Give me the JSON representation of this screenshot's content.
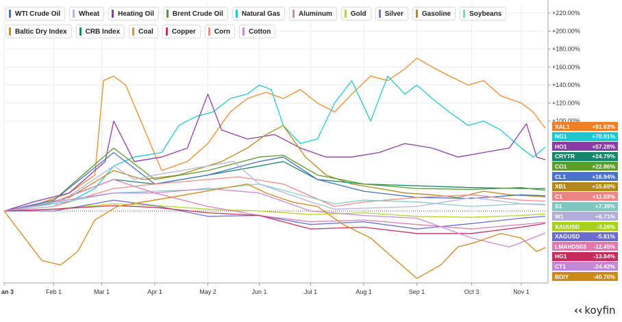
{
  "chart_data": {
    "type": "line",
    "ylabel_suffix": "%",
    "ylim": [
      -80,
      230
    ],
    "yticks": [
      100,
      120,
      140,
      160,
      180,
      200,
      220
    ],
    "ytick_labels": [
      "+100.00%",
      "+120.00%",
      "+140.00%",
      "+160.00%",
      "+180.00%",
      "+200.00%",
      "+220.00%"
    ],
    "x_range": [
      "2022-01-03",
      "2022-11-15"
    ],
    "xticks": [
      {
        "date": "2022-01-03",
        "label": "an 3"
      },
      {
        "date": "2022-02-01",
        "label": "Feb 1"
      },
      {
        "date": "2022-03-01",
        "label": "Mar 1"
      },
      {
        "date": "2022-04-01",
        "label": "Apr 1"
      },
      {
        "date": "2022-05-02",
        "label": "May 2"
      },
      {
        "date": "2022-06-01",
        "label": "Jun 1"
      },
      {
        "date": "2022-07-01",
        "label": "Jul 1"
      },
      {
        "date": "2022-08-01",
        "label": "Aug 1"
      },
      {
        "date": "2022-09-01",
        "label": "Sep 1"
      },
      {
        "date": "2022-10-03",
        "label": "Oct 3"
      },
      {
        "date": "2022-11-01",
        "label": "Nov 1"
      }
    ],
    "legend": [
      {
        "name": "WTI Crude Oil",
        "color": "#4472c4"
      },
      {
        "name": "Wheat",
        "color": "#b4b4dc"
      },
      {
        "name": "Heating Oil",
        "color": "#8e3ca8"
      },
      {
        "name": "Brent Crude Oil",
        "color": "#5a9a2a"
      },
      {
        "name": "Natural Gas",
        "color": "#22c8d0"
      },
      {
        "name": "Aluminum",
        "color": "#e27fb3"
      },
      {
        "name": "Gold",
        "color": "#b4d62a"
      },
      {
        "name": "Silver",
        "color": "#6f6fd6"
      },
      {
        "name": "Gasoline",
        "color": "#b8891a"
      },
      {
        "name": "Soybeans",
        "color": "#86cdc4"
      },
      {
        "name": "Baltic Dry Index",
        "color": "#d1891c"
      },
      {
        "name": "CRB Index",
        "color": "#16876e"
      },
      {
        "name": "Coal",
        "color": "#f08a28"
      },
      {
        "name": "Copper",
        "color": "#c7325e"
      },
      {
        "name": "Corn",
        "color": "#ef8a8a"
      },
      {
        "name": "Cotton",
        "color": "#c989d6"
      }
    ],
    "badges": [
      {
        "ticker": "XAL1",
        "value": "+91.63%",
        "color": "#f57f20"
      },
      {
        "ticker": "NG1",
        "value": "+70.91%",
        "color": "#1fc6cf"
      },
      {
        "ticker": "HO1",
        "value": "+57.28%",
        "color": "#8c3aa6"
      },
      {
        "ticker": "CRYTR",
        "value": "+24.79%",
        "color": "#13876d"
      },
      {
        "ticker": "CO1",
        "value": "+22.86%",
        "color": "#5e9c2b"
      },
      {
        "ticker": "CL1",
        "value": "+16.94%",
        "color": "#4a74c6"
      },
      {
        "ticker": "XB1",
        "value": "+15.69%",
        "color": "#b38815"
      },
      {
        "ticker": "C1",
        "value": "+11.03%",
        "color": "#ea8686"
      },
      {
        "ticker": "S1",
        "value": "+7.39%",
        "color": "#7cc8bf"
      },
      {
        "ticker": "W1",
        "value": "+6.71%",
        "color": "#aeaed8"
      },
      {
        "ticker": "XAUUSD",
        "value": "-3.26%",
        "color": "#a8d01e"
      },
      {
        "ticker": "XAGUSD",
        "value": "-5.81%",
        "color": "#6a6ad3"
      },
      {
        "ticker": "LMAHDS03",
        "value": "-12.45%",
        "color": "#e079b0"
      },
      {
        "ticker": "HG1",
        "value": "-13.84%",
        "color": "#c42d5b"
      },
      {
        "ticker": "CT1",
        "value": "-24.42%",
        "color": "#c488d2"
      },
      {
        "ticker": "BDIY",
        "value": "-40.70%",
        "color": "#c98a1a"
      }
    ],
    "series": [
      {
        "name": "Coal",
        "color": "#f08a28",
        "x": [
          "2022-01-03",
          "2022-01-20",
          "2022-02-10",
          "2022-02-25",
          "2022-03-02",
          "2022-03-08",
          "2022-03-15",
          "2022-03-25",
          "2022-04-05",
          "2022-04-20",
          "2022-05-02",
          "2022-05-15",
          "2022-05-25",
          "2022-06-05",
          "2022-06-15",
          "2022-06-25",
          "2022-07-05",
          "2022-07-15",
          "2022-07-25",
          "2022-08-05",
          "2022-08-15",
          "2022-08-25",
          "2022-09-01",
          "2022-09-10",
          "2022-09-20",
          "2022-10-01",
          "2022-10-10",
          "2022-10-20",
          "2022-11-01",
          "2022-11-08",
          "2022-11-15"
        ],
        "y": [
          0,
          6,
          20,
          40,
          145,
          150,
          140,
          95,
          45,
          55,
          75,
          110,
          125,
          132,
          125,
          135,
          120,
          110,
          130,
          150,
          145,
          158,
          170,
          160,
          150,
          140,
          145,
          128,
          120,
          110,
          92
        ]
      },
      {
        "name": "Natural Gas",
        "color": "#22c8d0",
        "x": [
          "2022-01-03",
          "2022-01-20",
          "2022-02-10",
          "2022-02-25",
          "2022-03-08",
          "2022-03-20",
          "2022-04-05",
          "2022-04-15",
          "2022-04-25",
          "2022-05-05",
          "2022-05-15",
          "2022-05-25",
          "2022-06-01",
          "2022-06-08",
          "2022-06-15",
          "2022-06-25",
          "2022-07-05",
          "2022-07-15",
          "2022-07-25",
          "2022-08-05",
          "2022-08-15",
          "2022-08-25",
          "2022-09-01",
          "2022-09-10",
          "2022-09-20",
          "2022-10-01",
          "2022-10-10",
          "2022-10-20",
          "2022-11-01",
          "2022-11-08",
          "2022-11-15"
        ],
        "y": [
          0,
          6,
          10,
          25,
          50,
          60,
          65,
          95,
          105,
          110,
          125,
          130,
          140,
          135,
          95,
          75,
          80,
          120,
          145,
          100,
          150,
          130,
          140,
          125,
          110,
          95,
          100,
          90,
          70,
          60,
          71
        ]
      },
      {
        "name": "Heating Oil",
        "color": "#8e3ca8",
        "x": [
          "2022-01-03",
          "2022-01-20",
          "2022-02-10",
          "2022-02-25",
          "2022-03-03",
          "2022-03-08",
          "2022-03-20",
          "2022-04-05",
          "2022-04-20",
          "2022-05-02",
          "2022-05-10",
          "2022-05-25",
          "2022-06-10",
          "2022-06-25",
          "2022-07-10",
          "2022-07-25",
          "2022-08-10",
          "2022-08-25",
          "2022-09-10",
          "2022-09-25",
          "2022-10-10",
          "2022-10-25",
          "2022-11-04",
          "2022-11-10",
          "2022-11-15"
        ],
        "y": [
          0,
          10,
          20,
          45,
          55,
          100,
          55,
          60,
          70,
          130,
          90,
          80,
          85,
          70,
          60,
          60,
          65,
          75,
          70,
          60,
          65,
          70,
          97,
          60,
          57
        ]
      },
      {
        "name": "Gasoline",
        "color": "#b8891a",
        "x": [
          "2022-01-03",
          "2022-01-20",
          "2022-02-10",
          "2022-03-08",
          "2022-03-25",
          "2022-04-15",
          "2022-05-10",
          "2022-05-25",
          "2022-06-05",
          "2022-06-15",
          "2022-06-28",
          "2022-07-10",
          "2022-07-25",
          "2022-08-10",
          "2022-08-25",
          "2022-09-10",
          "2022-09-25",
          "2022-10-10",
          "2022-10-25",
          "2022-11-15"
        ],
        "y": [
          0,
          5,
          15,
          45,
          35,
          40,
          55,
          70,
          85,
          95,
          60,
          40,
          30,
          25,
          20,
          18,
          15,
          22,
          18,
          15.7
        ]
      },
      {
        "name": "CRB Index",
        "color": "#16876e",
        "x": [
          "2022-01-03",
          "2022-02-01",
          "2022-03-08",
          "2022-04-01",
          "2022-05-02",
          "2022-06-01",
          "2022-06-15",
          "2022-07-05",
          "2022-08-01",
          "2022-09-01",
          "2022-10-03",
          "2022-11-01",
          "2022-11-15"
        ],
        "y": [
          0,
          10,
          35,
          30,
          40,
          50,
          55,
          35,
          30,
          28,
          26,
          25,
          24.8
        ]
      },
      {
        "name": "Brent Crude Oil",
        "color": "#5a9a2a",
        "x": [
          "2022-01-03",
          "2022-02-01",
          "2022-03-08",
          "2022-04-01",
          "2022-05-02",
          "2022-06-01",
          "2022-06-15",
          "2022-07-05",
          "2022-08-01",
          "2022-09-01",
          "2022-10-03",
          "2022-11-01",
          "2022-11-15"
        ],
        "y": [
          0,
          12,
          70,
          35,
          45,
          60,
          62,
          40,
          30,
          25,
          24,
          26,
          22.9
        ]
      },
      {
        "name": "WTI Crude Oil",
        "color": "#4472c4",
        "x": [
          "2022-01-03",
          "2022-02-01",
          "2022-03-08",
          "2022-04-01",
          "2022-05-02",
          "2022-06-01",
          "2022-06-15",
          "2022-07-05",
          "2022-08-01",
          "2022-09-01",
          "2022-10-03",
          "2022-11-01",
          "2022-11-15"
        ],
        "y": [
          0,
          12,
          65,
          30,
          40,
          55,
          60,
          35,
          22,
          15,
          14,
          18,
          16.9
        ]
      },
      {
        "name": "Corn",
        "color": "#ef8a8a",
        "x": [
          "2022-01-03",
          "2022-02-01",
          "2022-03-08",
          "2022-04-01",
          "2022-05-02",
          "2022-05-20",
          "2022-06-15",
          "2022-07-15",
          "2022-08-01",
          "2022-09-01",
          "2022-10-03",
          "2022-11-01",
          "2022-11-15"
        ],
        "y": [
          0,
          5,
          25,
          30,
          35,
          38,
          30,
          5,
          10,
          15,
          18,
          12,
          11
        ]
      },
      {
        "name": "Soybeans",
        "color": "#86cdc4",
        "x": [
          "2022-01-03",
          "2022-02-01",
          "2022-03-08",
          "2022-04-01",
          "2022-05-02",
          "2022-06-01",
          "2022-07-15",
          "2022-08-01",
          "2022-09-01",
          "2022-10-03",
          "2022-11-01",
          "2022-11-15"
        ],
        "y": [
          0,
          8,
          20,
          22,
          24,
          30,
          8,
          12,
          10,
          5,
          8,
          7.4
        ]
      },
      {
        "name": "Wheat",
        "color": "#b4b4dc",
        "x": [
          "2022-01-03",
          "2022-02-01",
          "2022-03-08",
          "2022-03-20",
          "2022-04-01",
          "2022-05-02",
          "2022-05-17",
          "2022-06-01",
          "2022-07-01",
          "2022-07-15",
          "2022-08-01",
          "2022-09-01",
          "2022-10-03",
          "2022-11-01",
          "2022-11-15"
        ],
        "y": [
          0,
          5,
          50,
          35,
          40,
          50,
          55,
          30,
          10,
          2,
          3,
          5,
          15,
          8,
          6.7
        ]
      },
      {
        "name": "Gold",
        "color": "#b4d62a",
        "x": [
          "2022-01-03",
          "2022-02-01",
          "2022-03-08",
          "2022-04-01",
          "2022-05-02",
          "2022-06-01",
          "2022-07-01",
          "2022-08-01",
          "2022-09-01",
          "2022-10-03",
          "2022-11-01",
          "2022-11-15"
        ],
        "y": [
          0,
          2,
          8,
          6,
          2,
          0,
          -4,
          -2,
          -6,
          -7,
          -5,
          -3.3
        ]
      },
      {
        "name": "Silver",
        "color": "#6f6fd6",
        "x": [
          "2022-01-03",
          "2022-02-01",
          "2022-03-08",
          "2022-04-01",
          "2022-05-02",
          "2022-06-01",
          "2022-07-01",
          "2022-08-01",
          "2022-09-01",
          "2022-10-03",
          "2022-11-01",
          "2022-11-15"
        ],
        "y": [
          0,
          0,
          12,
          6,
          -6,
          -5,
          -15,
          -12,
          -20,
          -14,
          -8,
          -5.8
        ]
      },
      {
        "name": "Aluminum",
        "color": "#e27fb3",
        "x": [
          "2022-01-03",
          "2022-02-01",
          "2022-03-08",
          "2022-04-01",
          "2022-05-02",
          "2022-06-01",
          "2022-07-01",
          "2022-08-01",
          "2022-09-01",
          "2022-10-03",
          "2022-11-01",
          "2022-11-15"
        ],
        "y": [
          0,
          10,
          35,
          20,
          5,
          -5,
          -12,
          -10,
          -15,
          -20,
          -15,
          -12.5
        ]
      },
      {
        "name": "Copper",
        "color": "#c7325e",
        "x": [
          "2022-01-03",
          "2022-02-01",
          "2022-03-08",
          "2022-04-01",
          "2022-05-02",
          "2022-06-01",
          "2022-07-01",
          "2022-08-01",
          "2022-09-01",
          "2022-10-03",
          "2022-11-01",
          "2022-11-15"
        ],
        "y": [
          0,
          2,
          6,
          4,
          -2,
          -5,
          -20,
          -18,
          -25,
          -25,
          -18,
          -13.8
        ]
      },
      {
        "name": "Cotton",
        "color": "#c989d6",
        "x": [
          "2022-01-03",
          "2022-02-01",
          "2022-03-08",
          "2022-04-01",
          "2022-05-02",
          "2022-06-01",
          "2022-07-01",
          "2022-08-01",
          "2022-09-01",
          "2022-10-03",
          "2022-10-25",
          "2022-11-01",
          "2022-11-15"
        ],
        "y": [
          0,
          10,
          20,
          20,
          25,
          20,
          0,
          -5,
          -8,
          -30,
          -40,
          -35,
          -24.4
        ]
      },
      {
        "name": "Baltic Dry Index",
        "color": "#d1891c",
        "x": [
          "2022-01-03",
          "2022-01-15",
          "2022-01-25",
          "2022-02-05",
          "2022-02-15",
          "2022-02-25",
          "2022-03-10",
          "2022-03-25",
          "2022-04-10",
          "2022-04-25",
          "2022-05-10",
          "2022-05-25",
          "2022-06-05",
          "2022-06-20",
          "2022-07-05",
          "2022-07-20",
          "2022-08-05",
          "2022-08-20",
          "2022-09-01",
          "2022-09-15",
          "2022-09-25",
          "2022-10-05",
          "2022-10-20",
          "2022-11-01",
          "2022-11-10",
          "2022-11-15"
        ],
        "y": [
          0,
          -30,
          -55,
          -60,
          -45,
          -10,
          5,
          10,
          15,
          20,
          25,
          30,
          20,
          10,
          5,
          -15,
          -30,
          -55,
          -75,
          -60,
          -40,
          -35,
          -25,
          -30,
          -45,
          -40.7
        ]
      }
    ]
  },
  "logo": {
    "text": "koyfin",
    "icon": "koyfin-logo-icon"
  }
}
